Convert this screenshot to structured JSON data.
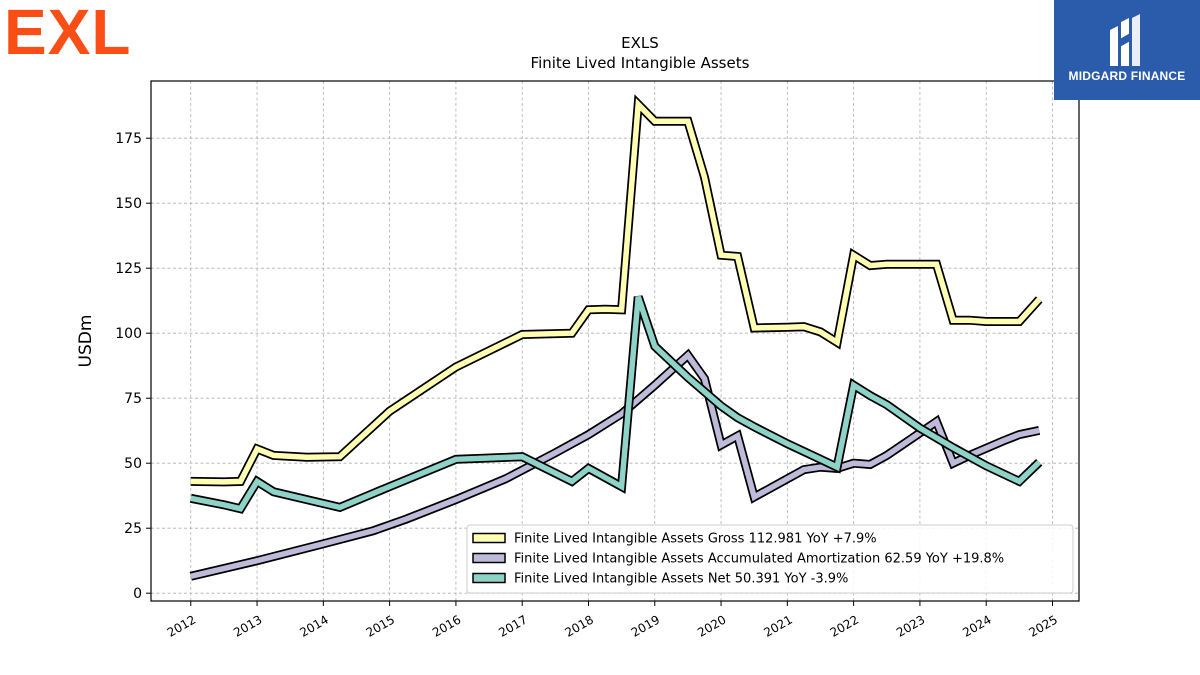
{
  "brand": {
    "left_logo_text": "EXL",
    "left_logo_color": "#fb4d16",
    "right_logo_text": "MIDGARD FINANCE",
    "right_logo_bg": "#2b5bab"
  },
  "chart_data": {
    "type": "line",
    "title": "EXLS",
    "subtitle": "Finite Lived Intangible Assets",
    "xlabel": "",
    "ylabel": "USDm",
    "xlim": [
      2011.4,
      2025.4
    ],
    "ylim": [
      -3,
      197
    ],
    "x_ticks": [
      "2012",
      "2013",
      "2014",
      "2015",
      "2016",
      "2017",
      "2018",
      "2019",
      "2020",
      "2021",
      "2022",
      "2023",
      "2024",
      "2025"
    ],
    "y_ticks": [
      0,
      25,
      50,
      75,
      100,
      125,
      150,
      175
    ],
    "grid": true,
    "legend_position": "lower-right",
    "series": [
      {
        "name": "Finite Lived Intangible Assets Gross",
        "legend": "Finite Lived Intangible Assets Gross  112.981 YoY +7.9%",
        "color": "#ffffb3",
        "points": [
          [
            2012.0,
            43
          ],
          [
            2012.5,
            42.8
          ],
          [
            2012.75,
            43
          ],
          [
            2013.0,
            55.5
          ],
          [
            2013.25,
            53
          ],
          [
            2013.75,
            52.3
          ],
          [
            2014.25,
            52.5
          ],
          [
            2015.0,
            70
          ],
          [
            2016.0,
            87
          ],
          [
            2017.0,
            99.5
          ],
          [
            2017.75,
            100
          ],
          [
            2018.0,
            109
          ],
          [
            2018.25,
            109.2
          ],
          [
            2018.5,
            109
          ],
          [
            2018.75,
            188
          ],
          [
            2019.0,
            181.5
          ],
          [
            2019.5,
            181.5
          ],
          [
            2019.75,
            160
          ],
          [
            2020.0,
            130
          ],
          [
            2020.25,
            129.5
          ],
          [
            2020.5,
            102
          ],
          [
            2021.0,
            102.3
          ],
          [
            2021.25,
            102.5
          ],
          [
            2021.5,
            100.5
          ],
          [
            2021.75,
            96.5
          ],
          [
            2022.0,
            130
          ],
          [
            2022.25,
            126
          ],
          [
            2022.5,
            126.5
          ],
          [
            2023.25,
            126.5
          ],
          [
            2023.5,
            105
          ],
          [
            2023.75,
            105
          ],
          [
            2024.0,
            104.5
          ],
          [
            2024.5,
            104.5
          ],
          [
            2024.8,
            113
          ]
        ]
      },
      {
        "name": "Finite Lived Intangible Assets Accumulated Amortization",
        "legend": "Finite Lived Intangible Assets Accumulated Amortization  62.59 YoY +19.8%",
        "color": "#bebada",
        "points": [
          [
            2012.0,
            6.5
          ],
          [
            2013.0,
            12.5
          ],
          [
            2014.0,
            19
          ],
          [
            2014.75,
            24
          ],
          [
            2015.25,
            28.5
          ],
          [
            2016.0,
            36
          ],
          [
            2016.75,
            44
          ],
          [
            2017.5,
            54
          ],
          [
            2018.0,
            61
          ],
          [
            2018.5,
            69
          ],
          [
            2019.0,
            80
          ],
          [
            2019.5,
            91.5
          ],
          [
            2019.75,
            82.5
          ],
          [
            2020.0,
            57
          ],
          [
            2020.25,
            60.5
          ],
          [
            2020.5,
            37
          ],
          [
            2021.0,
            44
          ],
          [
            2021.25,
            47.5
          ],
          [
            2021.5,
            48.5
          ],
          [
            2021.75,
            48
          ],
          [
            2022.0,
            50
          ],
          [
            2022.25,
            49.5
          ],
          [
            2022.5,
            53
          ],
          [
            2023.25,
            66
          ],
          [
            2023.5,
            50
          ],
          [
            2023.75,
            53
          ],
          [
            2024.25,
            58.5
          ],
          [
            2024.5,
            61
          ],
          [
            2024.8,
            62.6
          ]
        ]
      },
      {
        "name": "Finite Lived Intangible Assets Net",
        "legend": "Finite Lived Intangible Assets Net  50.391 YoY -3.9%",
        "color": "#8dd3c7",
        "points": [
          [
            2012.0,
            36.5
          ],
          [
            2012.5,
            34
          ],
          [
            2012.75,
            32.5
          ],
          [
            2013.0,
            43
          ],
          [
            2013.25,
            39
          ],
          [
            2014.25,
            33
          ],
          [
            2015.0,
            41
          ],
          [
            2016.0,
            51.5
          ],
          [
            2017.0,
            52.5
          ],
          [
            2017.75,
            43
          ],
          [
            2018.0,
            48
          ],
          [
            2018.5,
            41
          ],
          [
            2018.75,
            114
          ],
          [
            2019.0,
            95
          ],
          [
            2019.5,
            83
          ],
          [
            2020.0,
            72
          ],
          [
            2020.25,
            67.5
          ],
          [
            2020.5,
            64
          ],
          [
            2021.0,
            57.5
          ],
          [
            2021.5,
            51.5
          ],
          [
            2021.75,
            48.5
          ],
          [
            2022.0,
            80
          ],
          [
            2022.25,
            76
          ],
          [
            2022.5,
            72.5
          ],
          [
            2023.0,
            63.5
          ],
          [
            2023.5,
            56
          ],
          [
            2024.0,
            49
          ],
          [
            2024.5,
            43
          ],
          [
            2024.8,
            50.4
          ]
        ]
      }
    ]
  }
}
